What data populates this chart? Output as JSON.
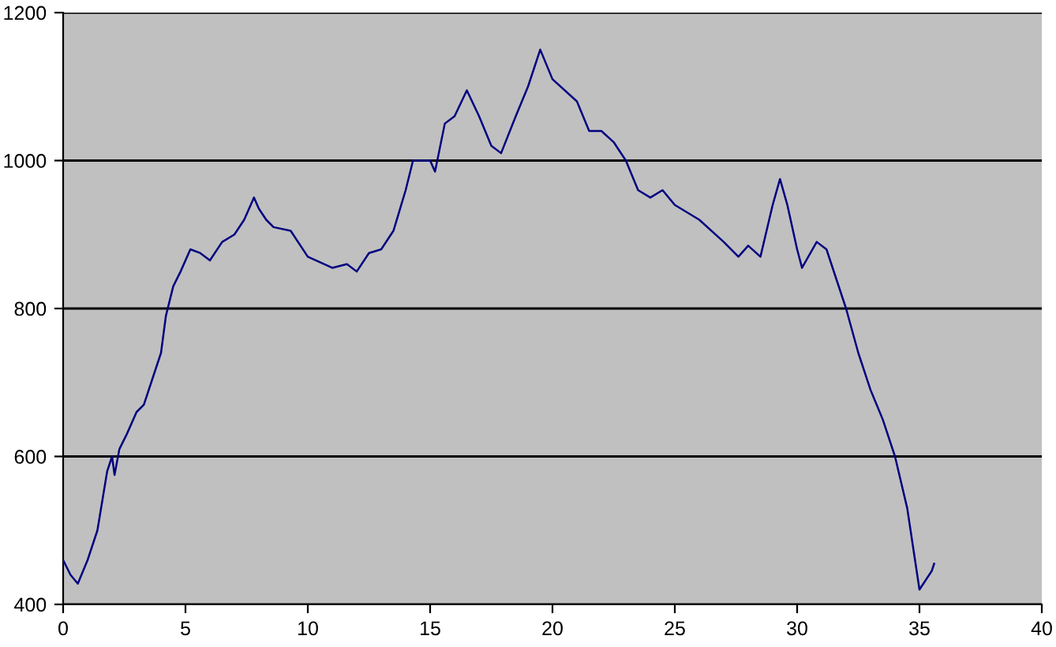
{
  "chart_data": {
    "type": "line",
    "xlim": [
      0,
      40
    ],
    "xticks": [
      0,
      5,
      10,
      15,
      20,
      25,
      30,
      35,
      40
    ],
    "ylim": [
      400,
      1200
    ],
    "yticks": [
      400,
      600,
      800,
      1000,
      1200
    ],
    "grid": "y",
    "line_style": "solid",
    "marker": "none",
    "series": [
      {
        "color": "#000080",
        "x": [
          0,
          0.3,
          0.6,
          1.0,
          1.4,
          1.6,
          1.8,
          2.0,
          2.1,
          2.3,
          2.6,
          3.0,
          3.3,
          3.6,
          4.0,
          4.2,
          4.5,
          4.8,
          5.2,
          5.6,
          6.0,
          6.5,
          7.0,
          7.4,
          7.8,
          8.0,
          8.3,
          8.6,
          9.3,
          10.0,
          11.0,
          11.6,
          12.0,
          12.5,
          13.0,
          13.5,
          14.0,
          14.3,
          15.0,
          15.2,
          15.6,
          16.0,
          16.5,
          17.0,
          17.5,
          17.9,
          18.5,
          19.0,
          19.5,
          20.0,
          21.0,
          21.5,
          22.0,
          22.5,
          23.0,
          23.5,
          24.0,
          24.5,
          25.0,
          26.0,
          27.0,
          27.6,
          28.0,
          28.5,
          29.0,
          29.3,
          29.6,
          30.0,
          30.2,
          30.8,
          31.2,
          31.6,
          32.0,
          32.5,
          33.0,
          33.5,
          34.0,
          34.5,
          35.0,
          35.5,
          35.6
        ],
        "values": [
          460,
          440,
          428,
          460,
          500,
          540,
          580,
          600,
          575,
          610,
          630,
          660,
          670,
          700,
          740,
          790,
          830,
          850,
          880,
          875,
          865,
          890,
          900,
          920,
          950,
          935,
          920,
          910,
          905,
          870,
          855,
          860,
          850,
          875,
          880,
          905,
          960,
          1000,
          1000,
          985,
          1050,
          1060,
          1095,
          1060,
          1020,
          1010,
          1060,
          1100,
          1150,
          1110,
          1080,
          1040,
          1040,
          1025,
          1000,
          960,
          950,
          960,
          940,
          920,
          890,
          870,
          885,
          870,
          940,
          975,
          940,
          880,
          855,
          890,
          880,
          840,
          800,
          740,
          690,
          650,
          600,
          530,
          420,
          445,
          455
        ]
      }
    ]
  }
}
